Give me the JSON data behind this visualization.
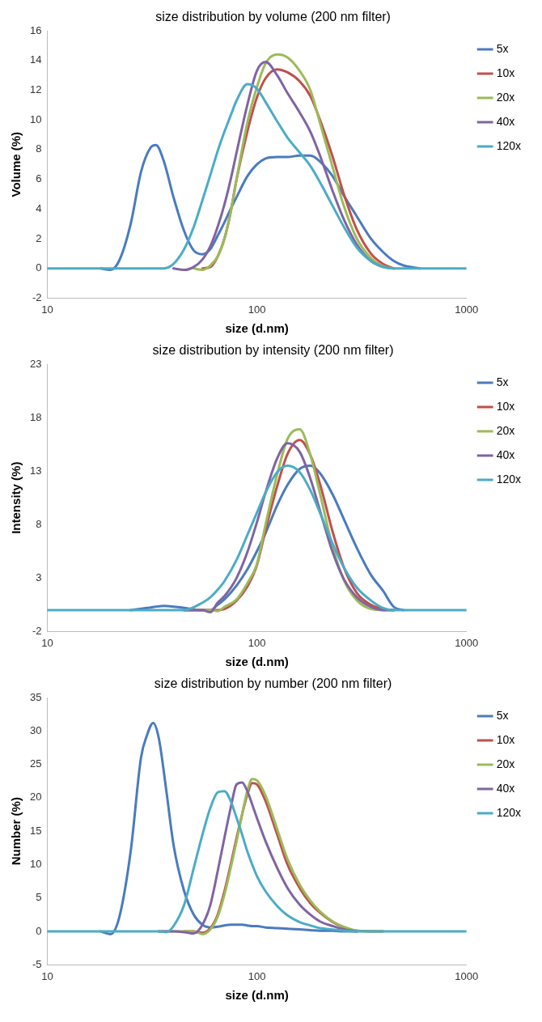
{
  "chart_data": [
    {
      "type": "line",
      "title": "size distribution by volume (200 nm filter)",
      "xlabel": "size (d.nm)",
      "ylabel": "Volume (%)",
      "log": "x",
      "grid": false,
      "legend": "right",
      "marker": "none",
      "line_style": "solid",
      "xlim": [
        10,
        1000
      ],
      "xticks": [
        10,
        100,
        1000
      ],
      "ylim": [
        -2,
        16
      ],
      "yticks": [
        -2,
        0,
        2,
        4,
        6,
        8,
        10,
        12,
        14,
        16
      ],
      "x": [
        10,
        18,
        20,
        22,
        25,
        28,
        31,
        33,
        36,
        40,
        45,
        50,
        55,
        60,
        65,
        70,
        75,
        80,
        90,
        100,
        110,
        125,
        140,
        160,
        180,
        200,
        230,
        260,
        300,
        350,
        400,
        450,
        500,
        600,
        1000
      ],
      "series": [
        {
          "name": "5x",
          "color": "#4a7bbf",
          "values": [
            null,
            0,
            -0.1,
            0.5,
            3,
            6.5,
            8.1,
            8.3,
            7.2,
            4.8,
            2.5,
            1.2,
            0.95,
            1.3,
            2.2,
            3.1,
            4,
            4.8,
            6.2,
            7,
            7.4,
            7.5,
            7.5,
            7.6,
            7.6,
            7.2,
            6.2,
            4.9,
            3.5,
            2,
            1.1,
            0.5,
            0.2,
            0,
            null
          ]
        },
        {
          "name": "10x",
          "color": "#c0504d",
          "values": [
            null,
            null,
            null,
            null,
            null,
            null,
            null,
            null,
            null,
            null,
            null,
            null,
            0,
            0.1,
            0.8,
            2,
            3.8,
            6,
            9.2,
            11.5,
            12.8,
            13.4,
            13.2,
            12.6,
            11.6,
            10,
            7.5,
            5,
            2.6,
            1,
            0.3,
            0,
            null,
            null,
            null
          ]
        },
        {
          "name": "20x",
          "color": "#9bbb59",
          "values": [
            null,
            null,
            null,
            null,
            null,
            null,
            null,
            null,
            null,
            null,
            null,
            0,
            -0.1,
            0.2,
            0.8,
            2,
            3.8,
            6,
            9.8,
            12.2,
            13.8,
            14.4,
            14.2,
            13.3,
            12,
            9.8,
            6.8,
            4.2,
            2,
            0.7,
            0.15,
            0,
            null,
            null,
            null
          ]
        },
        {
          "name": "40x",
          "color": "#8064a2",
          "values": [
            null,
            null,
            null,
            null,
            null,
            null,
            null,
            null,
            null,
            0,
            -0.1,
            0.1,
            0.6,
            1.5,
            2.8,
            4.3,
            6,
            7.8,
            11,
            13.3,
            13.9,
            13,
            11.8,
            10.5,
            9.2,
            7.6,
            5.2,
            3.3,
            1.6,
            0.5,
            0.1,
            0,
            null,
            null,
            null
          ]
        },
        {
          "name": "120x",
          "color": "#4bacc6",
          "values": [
            0,
            0,
            0,
            0,
            0,
            0,
            0,
            0,
            0,
            0.3,
            1.3,
            2.8,
            4.6,
            6.3,
            7.9,
            9.2,
            10.3,
            11.3,
            12.4,
            12.1,
            11.2,
            9.9,
            8.8,
            7.8,
            6.9,
            5.8,
            4.2,
            2.8,
            1.4,
            0.5,
            0.1,
            0,
            0,
            0,
            0
          ]
        }
      ]
    },
    {
      "type": "line",
      "title": "size distribution by intensity (200 nm filter)",
      "xlabel": "size (d.nm)",
      "ylabel": "Intensity (%)",
      "log": "x",
      "grid": false,
      "legend": "right",
      "marker": "none",
      "line_style": "solid",
      "xlim": [
        10,
        1000
      ],
      "xticks": [
        10,
        100,
        1000
      ],
      "ylim": [
        -2,
        23
      ],
      "yticks": [
        -2,
        3,
        8,
        13,
        18,
        23
      ],
      "x": [
        10,
        25,
        30,
        36,
        45,
        55,
        60,
        65,
        70,
        80,
        90,
        100,
        110,
        125,
        140,
        160,
        180,
        200,
        230,
        260,
        300,
        350,
        400,
        450,
        500,
        600,
        1000
      ],
      "series": [
        {
          "name": "5x",
          "color": "#4a7bbf",
          "values": [
            null,
            0,
            0.2,
            0.4,
            0.2,
            0,
            0,
            0.5,
            1,
            2.3,
            3.8,
            5.5,
            7.2,
            9.8,
            11.7,
            13.2,
            13.5,
            12.8,
            10.8,
            8.5,
            5.8,
            3.3,
            1.8,
            0.3,
            0,
            null,
            null
          ]
        },
        {
          "name": "10x",
          "color": "#c0504d",
          "values": [
            null,
            null,
            null,
            null,
            0,
            0,
            0,
            0,
            0.1,
            0.9,
            2.2,
            4.2,
            7.5,
            11.6,
            14.6,
            15.9,
            14.5,
            11.8,
            7.3,
            4,
            1.6,
            0.5,
            0.1,
            0,
            null,
            null,
            null
          ]
        },
        {
          "name": "20x",
          "color": "#9bbb59",
          "values": [
            null,
            null,
            null,
            null,
            0,
            0,
            0,
            -0.1,
            0.3,
            1,
            2.5,
            4.3,
            8,
            12.7,
            16,
            16.9,
            14.5,
            10.9,
            5.9,
            2.8,
            0.9,
            0.1,
            0,
            0,
            null,
            null,
            null
          ]
        },
        {
          "name": "40x",
          "color": "#8064a2",
          "values": [
            null,
            null,
            null,
            null,
            0,
            0,
            -0.2,
            0.7,
            1.3,
            3,
            5.4,
            8.2,
            11,
            14.2,
            15.6,
            14.8,
            12.3,
            9.3,
            5.4,
            2.9,
            1.2,
            0.3,
            0,
            0,
            null,
            null,
            null
          ]
        },
        {
          "name": "120x",
          "color": "#4bacc6",
          "values": [
            0,
            0,
            0,
            0,
            0,
            0.7,
            1.2,
            1.9,
            2.7,
            4.7,
            7,
            9.1,
            11,
            12.9,
            13.5,
            12.9,
            11.2,
            9.1,
            6.2,
            4,
            2.1,
            0.9,
            0.2,
            0,
            0,
            0,
            0
          ]
        }
      ]
    },
    {
      "type": "line",
      "title": "size distribution by number (200 nm filter)",
      "xlabel": "size (d.nm)",
      "ylabel": "Number (%)",
      "log": "x",
      "grid": false,
      "legend": "right",
      "marker": "none",
      "line_style": "solid",
      "xlim": [
        10,
        1000
      ],
      "xticks": [
        10,
        100,
        1000
      ],
      "ylim": [
        -5,
        35
      ],
      "yticks": [
        -5,
        0,
        5,
        10,
        15,
        20,
        25,
        30,
        35
      ],
      "x": [
        10,
        18,
        20,
        22,
        25,
        28,
        30,
        32,
        34,
        37,
        40,
        45,
        50,
        55,
        60,
        65,
        70,
        75,
        80,
        85,
        90,
        95,
        100,
        110,
        125,
        140,
        160,
        180,
        200,
        230,
        260,
        300,
        400,
        1000
      ],
      "series": [
        {
          "name": "5x",
          "color": "#4a7bbf",
          "values": [
            null,
            0,
            -0.4,
            2,
            12,
            26,
            29.5,
            31.2,
            29,
            21,
            13,
            6,
            2.5,
            1,
            0.6,
            0.7,
            0.9,
            1,
            1,
            1,
            0.9,
            0.8,
            0.8,
            0.6,
            0.5,
            0.4,
            0.3,
            0.2,
            0.1,
            0.1,
            0,
            0,
            null,
            null
          ]
        },
        {
          "name": "10x",
          "color": "#c0504d",
          "values": [
            null,
            null,
            null,
            null,
            null,
            null,
            null,
            null,
            null,
            null,
            null,
            0,
            0,
            -0.2,
            0.5,
            2.5,
            6,
            10,
            14,
            17.5,
            20.5,
            22.2,
            22,
            19.5,
            14.5,
            10,
            6.5,
            4.2,
            2.8,
            1.4,
            0.6,
            0.1,
            0,
            null
          ]
        },
        {
          "name": "20x",
          "color": "#9bbb59",
          "values": [
            null,
            null,
            null,
            null,
            null,
            null,
            null,
            null,
            0,
            0,
            0,
            0,
            0,
            -0.4,
            0.3,
            2.2,
            5.5,
            9.5,
            13.5,
            17.5,
            21,
            22.8,
            22.6,
            20.3,
            15.3,
            10.8,
            7,
            4.6,
            3,
            1.5,
            0.7,
            0.1,
            0,
            null
          ]
        },
        {
          "name": "40x",
          "color": "#8064a2",
          "values": [
            null,
            null,
            null,
            null,
            null,
            null,
            null,
            null,
            0,
            0,
            0,
            -0.1,
            -0.3,
            1,
            4,
            9,
            14,
            18.5,
            22,
            22.3,
            21,
            19,
            17,
            13.5,
            9.5,
            6.5,
            4,
            2.5,
            1.5,
            0.8,
            0.3,
            0,
            null,
            null
          ]
        },
        {
          "name": "120x",
          "color": "#4bacc6",
          "values": [
            0,
            0,
            0,
            0,
            0,
            0,
            0,
            0,
            0,
            -0.1,
            0.8,
            4,
            9.5,
            14.5,
            18.5,
            20.8,
            21,
            19.5,
            17,
            14.5,
            12,
            10,
            8.3,
            6,
            3.8,
            2.4,
            1.4,
            0.9,
            0.5,
            0.3,
            0.1,
            0,
            0,
            0
          ]
        }
      ]
    }
  ]
}
